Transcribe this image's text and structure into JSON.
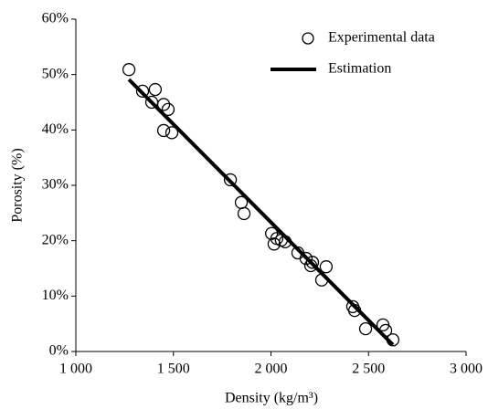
{
  "chart_data": {
    "type": "scatter",
    "x_label": "Density (kg/m³)",
    "y_label": "Porosity (%)",
    "xlim": [
      1000,
      3000
    ],
    "ylim": [
      0,
      60
    ],
    "xticks": [
      {
        "value": 1000,
        "label": "1 000"
      },
      {
        "value": 1500,
        "label": "1 500"
      },
      {
        "value": 2000,
        "label": "2 000"
      },
      {
        "value": 2500,
        "label": "2 500"
      },
      {
        "value": 3000,
        "label": "3 000"
      }
    ],
    "yticks": [
      {
        "value": 0,
        "label": "0%"
      },
      {
        "value": 10,
        "label": "10%"
      },
      {
        "value": 20,
        "label": "20%"
      },
      {
        "value": 30,
        "label": "30%"
      },
      {
        "value": 40,
        "label": "40%"
      },
      {
        "value": 50,
        "label": "50%"
      },
      {
        "value": 60,
        "label": "60%"
      }
    ],
    "legend": "top-right",
    "series": [
      {
        "name": "Experimental data",
        "color": "#000000",
        "marker": "open-circle",
        "x": [
          1272,
          1342,
          1407,
          1389,
          1450,
          1473,
          1450,
          1492,
          1792,
          1848,
          1862,
          2003,
          2030,
          2016,
          2053,
          2073,
          2138,
          2180,
          2204,
          2213,
          2260,
          2283,
          2419,
          2429,
          2485,
          2574,
          2588,
          2625
        ],
        "values": [
          50.9,
          47.0,
          47.3,
          45.0,
          44.6,
          43.7,
          39.9,
          39.5,
          31.0,
          26.9,
          24.9,
          21.3,
          20.4,
          19.4,
          20.1,
          19.8,
          17.8,
          16.8,
          15.5,
          16.1,
          12.9,
          15.3,
          8.1,
          7.4,
          4.1,
          4.8,
          3.8,
          2.1
        ]
      },
      {
        "name": "Estimation",
        "color": "#000000",
        "marker": "line",
        "x": [
          1272,
          2625
        ],
        "values": [
          49.1,
          1.2
        ]
      }
    ]
  }
}
